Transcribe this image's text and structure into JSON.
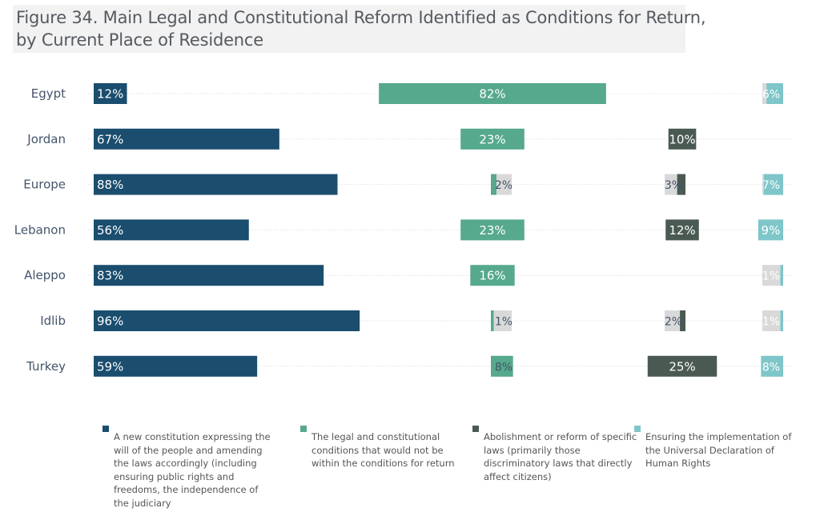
{
  "title": {
    "line1": "Figure 34. Main Legal and Constitutional Reform Identified as Conditions for Return,",
    "line2": "by Current Place of Residence"
  },
  "chart_data": {
    "type": "bar",
    "categories": [
      "Egypt",
      "Jordan",
      "Europe",
      "Lebanon",
      "Aleppo",
      "Idlib",
      "Turkey"
    ],
    "series": [
      {
        "name": "A new constitution expressing the will of the people and amending the laws accordingly (including ensuring public rights and freedoms, the independence of the judiciary",
        "color": "#1a4d6e",
        "values": [
          12,
          67,
          88,
          56,
          83,
          96,
          59
        ],
        "labels": [
          "12%",
          "67%",
          "88%",
          "56%",
          "83%",
          "96%",
          "59%"
        ]
      },
      {
        "name": "The legal and constitutional conditions that would not be within the conditions for return",
        "color": "#56a98c",
        "values": [
          82,
          23,
          2,
          23,
          16,
          1,
          8
        ],
        "labels": [
          "82%",
          "23%",
          "2%",
          "23%",
          "16%",
          "1%",
          "8%"
        ]
      },
      {
        "name": "Abolishment or reform of specific laws (primarily those discriminatory laws that directly affect citizens)",
        "color": "#4a5a53",
        "values": [
          0,
          10,
          3,
          12,
          0,
          2,
          25
        ],
        "labels": [
          "",
          "10%",
          "3%",
          "12%",
          "",
          "2%",
          "25%"
        ]
      },
      {
        "name": "Ensuring the implementation of the Universal Declaration of Human Rights",
        "color": "#7ec6c9",
        "values": [
          6,
          0,
          7,
          9,
          1,
          1,
          8
        ],
        "labels": [
          "6%",
          "",
          "7%",
          "9%",
          "1%",
          "1%",
          "8%"
        ]
      }
    ]
  },
  "colors": {
    "label_box": "#d9d9d9",
    "gridline": "#e6e6e6",
    "label_light": "#ffffff",
    "label_dark": "#44546a"
  }
}
